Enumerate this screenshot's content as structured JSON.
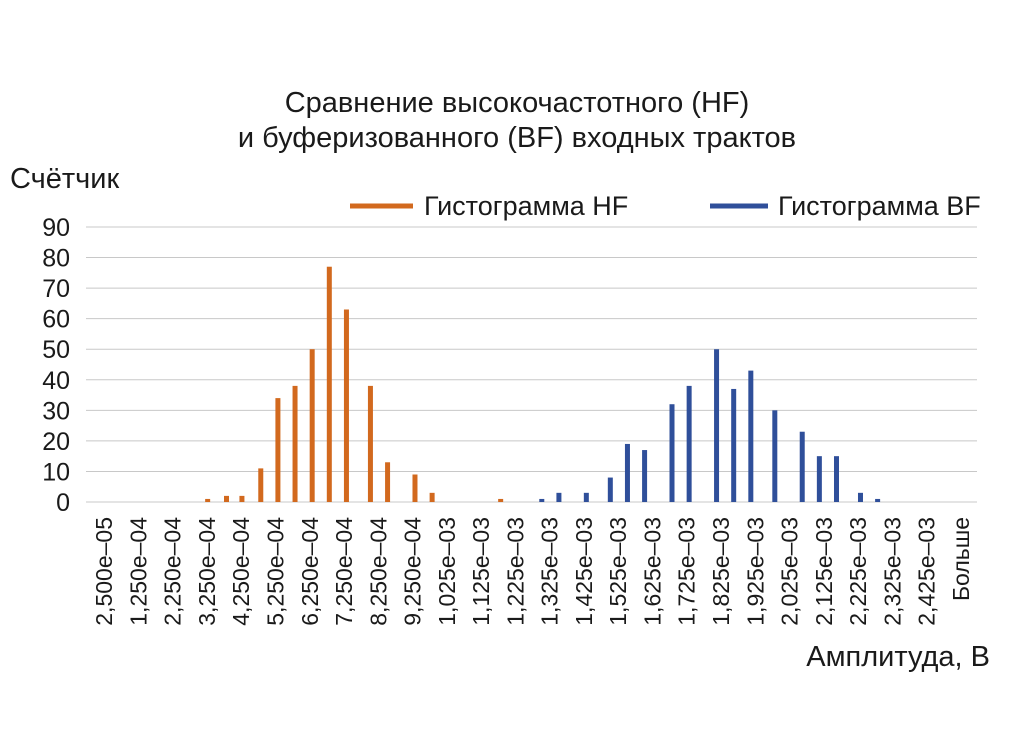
{
  "chart_data": {
    "type": "bar",
    "title": [
      "Сравнение высокочастотного (HF)",
      "и буферизованного (BF) входных трактов"
    ],
    "ylabel": "Счётчик",
    "xlabel": "Амплитуда, В",
    "ylim": [
      0,
      90
    ],
    "yticks": [
      0,
      10,
      20,
      30,
      40,
      50,
      60,
      70,
      80,
      90
    ],
    "grid": true,
    "legend_position": "top-right",
    "categories": [
      "2,500e–05",
      "1,250e–04",
      "2,250e–04",
      "3,250e–04",
      "4,250e–04",
      "5,250e–04",
      "6,250e–04",
      "7,250e–04",
      "8,250e–04",
      "9,250e–04",
      "1,025e–03",
      "1,125e–03",
      "1,225e–03",
      "1,325e–03",
      "1,425e–03",
      "1,525e–03",
      "1,625e–03",
      "1,725e–03",
      "1,825e–03",
      "1,925e–03",
      "2,025e–03",
      "2,125e–03",
      "2,225e–03",
      "2,325e–03",
      "2,425e–03",
      "Больше"
    ],
    "series": [
      {
        "name": "Гистограмма HF",
        "color": "#d2691e",
        "points": [
          {
            "x": 3.05,
            "y": 1
          },
          {
            "x": 3.6,
            "y": 2
          },
          {
            "x": 4.05,
            "y": 2
          },
          {
            "x": 4.6,
            "y": 11
          },
          {
            "x": 5.1,
            "y": 34
          },
          {
            "x": 5.6,
            "y": 38
          },
          {
            "x": 6.1,
            "y": 50
          },
          {
            "x": 6.6,
            "y": 77
          },
          {
            "x": 7.1,
            "y": 63
          },
          {
            "x": 7.8,
            "y": 38
          },
          {
            "x": 8.3,
            "y": 13
          },
          {
            "x": 9.1,
            "y": 9
          },
          {
            "x": 9.6,
            "y": 3
          },
          {
            "x": 11.6,
            "y": 1
          }
        ]
      },
      {
        "name": "Гистограмма BF",
        "color": "#2f4f9a",
        "points": [
          {
            "x": 12.8,
            "y": 1
          },
          {
            "x": 13.3,
            "y": 3
          },
          {
            "x": 14.1,
            "y": 3
          },
          {
            "x": 14.8,
            "y": 8
          },
          {
            "x": 15.3,
            "y": 19
          },
          {
            "x": 15.8,
            "y": 17
          },
          {
            "x": 16.6,
            "y": 32
          },
          {
            "x": 17.1,
            "y": 38
          },
          {
            "x": 17.9,
            "y": 50
          },
          {
            "x": 18.4,
            "y": 37
          },
          {
            "x": 18.9,
            "y": 43
          },
          {
            "x": 19.6,
            "y": 30
          },
          {
            "x": 20.4,
            "y": 23
          },
          {
            "x": 20.9,
            "y": 15
          },
          {
            "x": 21.4,
            "y": 15
          },
          {
            "x": 22.1,
            "y": 3
          },
          {
            "x": 22.6,
            "y": 1
          }
        ]
      }
    ]
  }
}
